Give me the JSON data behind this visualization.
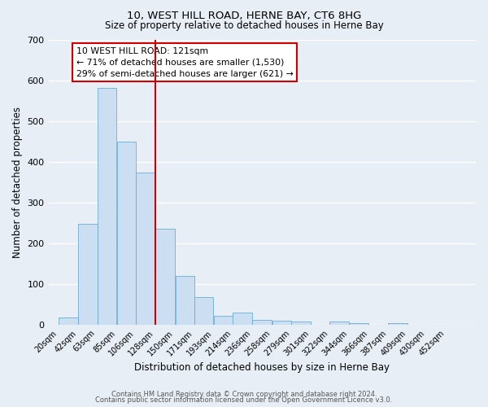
{
  "title": "10, WEST HILL ROAD, HERNE BAY, CT6 8HG",
  "subtitle": "Size of property relative to detached houses in Herne Bay",
  "xlabel": "Distribution of detached houses by size in Herne Bay",
  "ylabel": "Number of detached properties",
  "bin_labels": [
    "20sqm",
    "42sqm",
    "63sqm",
    "85sqm",
    "106sqm",
    "128sqm",
    "150sqm",
    "171sqm",
    "193sqm",
    "214sqm",
    "236sqm",
    "258sqm",
    "279sqm",
    "301sqm",
    "322sqm",
    "344sqm",
    "366sqm",
    "387sqm",
    "409sqm",
    "430sqm",
    "452sqm"
  ],
  "bar_heights": [
    18,
    248,
    583,
    450,
    375,
    237,
    120,
    68,
    22,
    31,
    13,
    10,
    8,
    0,
    8,
    5,
    0,
    5,
    0,
    0,
    0
  ],
  "bar_color": "#ccdff2",
  "bar_edge_color": "#6aaed6",
  "vline_x_index": 5,
  "vline_color": "#cc0000",
  "ylim": [
    0,
    700
  ],
  "yticks": [
    0,
    100,
    200,
    300,
    400,
    500,
    600,
    700
  ],
  "annotation_title": "10 WEST HILL ROAD: 121sqm",
  "annotation_line1": "← 71% of detached houses are smaller (1,530)",
  "annotation_line2": "29% of semi-detached houses are larger (621) →",
  "footer1": "Contains HM Land Registry data © Crown copyright and database right 2024.",
  "footer2": "Contains public sector information licensed under the Open Government Licence v3.0.",
  "bg_color": "#e8eef6",
  "plot_bg_color": "#e8eef6",
  "grid_color": "#ffffff",
  "bin_width": 22
}
